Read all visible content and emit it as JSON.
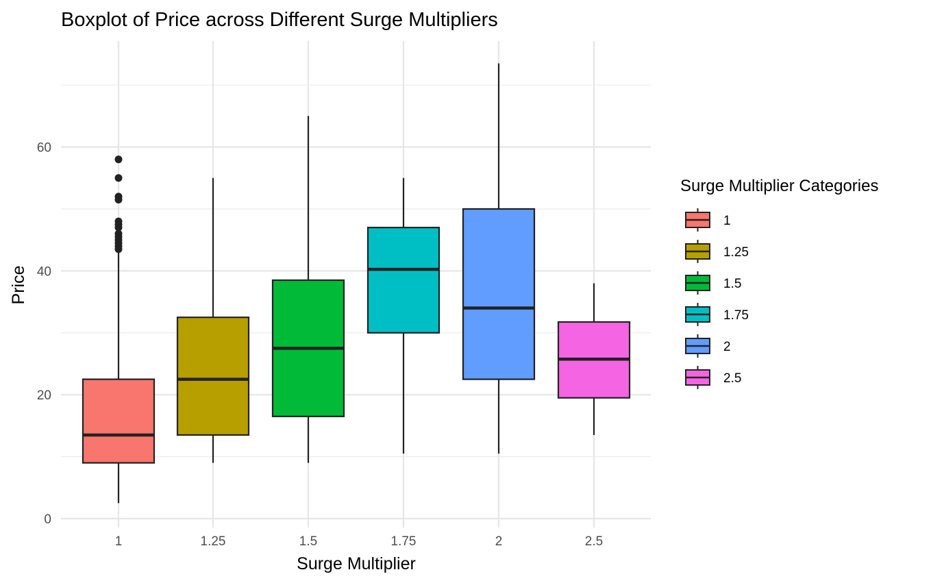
{
  "chart_data": {
    "type": "boxplot",
    "title": "Boxplot of Price across Different Surge Multipliers",
    "xlabel": "Surge Multiplier",
    "ylabel": "Price",
    "ylim": [
      0,
      75
    ],
    "y_ticks": [
      0,
      20,
      40,
      60
    ],
    "grid": true,
    "legend": {
      "title": "Surge Multiplier Categories",
      "position": "right"
    },
    "categories": [
      "1",
      "1.25",
      "1.5",
      "1.75",
      "2",
      "2.5"
    ],
    "colors": [
      "#F8766D",
      "#B79F00",
      "#00BA38",
      "#00BFC4",
      "#619CFF",
      "#F564E3"
    ],
    "boxes": [
      {
        "category": "1",
        "whisker_low": 2.5,
        "q1": 9.0,
        "median": 13.5,
        "q3": 22.5,
        "whisker_high": 43.0,
        "outliers": [
          43.5,
          44.0,
          44.5,
          45.0,
          45.5,
          46.0,
          47.0,
          47.5,
          48.0,
          51.5,
          52.0,
          55.0,
          58.0
        ]
      },
      {
        "category": "1.25",
        "whisker_low": 9.0,
        "q1": 13.5,
        "median": 22.5,
        "q3": 32.5,
        "whisker_high": 55.0,
        "outliers": []
      },
      {
        "category": "1.5",
        "whisker_low": 9.0,
        "q1": 16.5,
        "median": 27.5,
        "q3": 38.5,
        "whisker_high": 65.0,
        "outliers": []
      },
      {
        "category": "1.75",
        "whisker_low": 10.5,
        "q1": 30.0,
        "median": 40.25,
        "q3": 47.0,
        "whisker_high": 55.0,
        "outliers": []
      },
      {
        "category": "2",
        "whisker_low": 10.5,
        "q1": 22.5,
        "median": 34.0,
        "q3": 50.0,
        "whisker_high": 73.5,
        "outliers": []
      },
      {
        "category": "2.5",
        "whisker_low": 13.5,
        "q1": 19.5,
        "median": 25.75,
        "q3": 31.75,
        "whisker_high": 38.0,
        "outliers": []
      }
    ]
  }
}
